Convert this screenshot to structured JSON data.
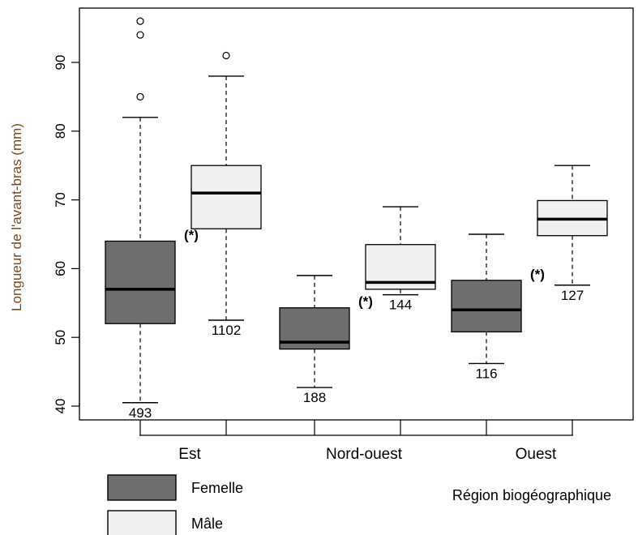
{
  "chart_data": {
    "type": "boxplot",
    "ylabel": "Longueur de l'avant-bras (mm)",
    "xlabel": "Région biogéographique",
    "ylim": [
      38,
      98
    ],
    "yticks": [
      40,
      50,
      60,
      70,
      80,
      90
    ],
    "categories": [
      "Est",
      "Nord-ouest",
      "Ouest"
    ],
    "series": [
      {
        "name": "Femelle",
        "color": "#6e6e6e"
      },
      {
        "name": "Mâle",
        "color": "#f0f0f0"
      }
    ],
    "boxes": [
      {
        "category": "Est",
        "series": "Femelle",
        "whisker_low": 40.5,
        "q1": 52,
        "median": 57,
        "q3": 64,
        "whisker_high": 82,
        "outliers": [
          85,
          94,
          96
        ],
        "n": "493",
        "sig": "(*)"
      },
      {
        "category": "Est",
        "series": "Mâle",
        "whisker_low": 52.5,
        "q1": 65.8,
        "median": 71,
        "q3": 75,
        "whisker_high": 88,
        "outliers": [
          91
        ],
        "n": "1102",
        "sig": ""
      },
      {
        "category": "Nord-ouest",
        "series": "Femelle",
        "whisker_low": 42.7,
        "q1": 48.3,
        "median": 49.3,
        "q3": 54.3,
        "whisker_high": 59,
        "outliers": [],
        "n": "188",
        "sig": "(*)"
      },
      {
        "category": "Nord-ouest",
        "series": "Mâle",
        "whisker_low": 56.2,
        "q1": 57,
        "median": 58,
        "q3": 63.5,
        "whisker_high": 69,
        "outliers": [],
        "n": "144",
        "sig": ""
      },
      {
        "category": "Ouest",
        "series": "Femelle",
        "whisker_low": 46.2,
        "q1": 50.8,
        "median": 54,
        "q3": 58.3,
        "whisker_high": 65,
        "outliers": [],
        "n": "116",
        "sig": "(*)"
      },
      {
        "category": "Ouest",
        "series": "Mâle",
        "whisker_low": 57.6,
        "q1": 64.8,
        "median": 67.2,
        "q3": 69.9,
        "whisker_high": 75,
        "outliers": [],
        "n": "127",
        "sig": ""
      }
    ],
    "legend": [
      {
        "label": "Femelle",
        "color": "#6e6e6e"
      },
      {
        "label": "Mâle",
        "color": "#f0f0f0"
      }
    ],
    "legend_position": "bottom-left",
    "grid": false
  }
}
